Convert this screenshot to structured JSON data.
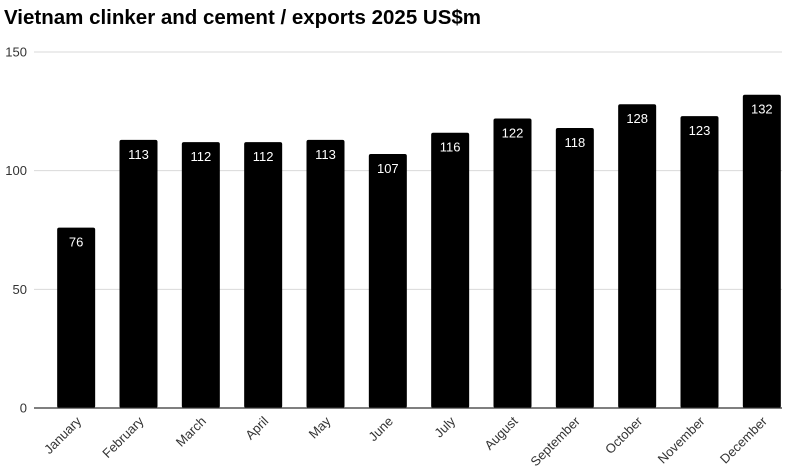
{
  "chart_data": {
    "type": "bar",
    "title": "Vietnam clinker and cement / exports 2025 US$m",
    "categories": [
      "January",
      "February",
      "March",
      "April",
      "May",
      "June",
      "July",
      "August",
      "September",
      "October",
      "November",
      "December"
    ],
    "values": [
      76,
      113,
      112,
      112,
      113,
      107,
      116,
      122,
      118,
      128,
      123,
      132
    ],
    "ylim": [
      0,
      150
    ],
    "yticks": [
      0,
      50,
      100,
      150
    ],
    "grid": true,
    "bar_color": "#000000",
    "label_color": "#ffffff"
  }
}
